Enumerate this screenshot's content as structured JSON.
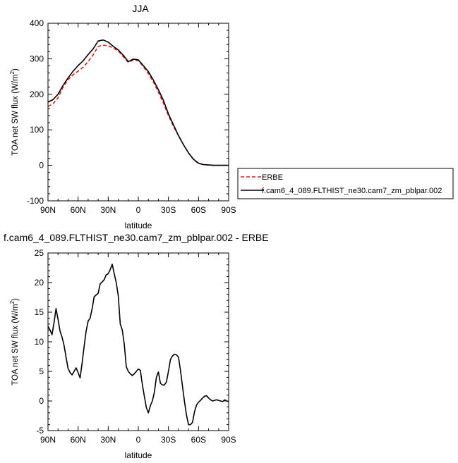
{
  "chart_data": [
    {
      "type": "line",
      "title": "JJA",
      "xlabel": "latitude",
      "ylabel": "TOA net SW flux (W/m²)",
      "ylabel_main": "TOA net SW flux (W/m",
      "ylabel_sup": "2",
      "ylabel_close": ")",
      "x_ticks": [
        "90N",
        "60N",
        "30N",
        "0",
        "30S",
        "60S",
        "90S"
      ],
      "y_ticks": [
        "-100",
        "0",
        "100",
        "200",
        "300",
        "400"
      ],
      "xlim": [
        90,
        -90
      ],
      "ylim": [
        -100,
        400
      ],
      "legend_position": "right",
      "x": [
        90,
        85,
        80,
        75,
        70,
        65,
        60,
        55,
        50,
        45,
        40,
        35,
        30,
        25,
        20,
        15,
        10,
        5,
        0,
        -5,
        -10,
        -15,
        -20,
        -25,
        -30,
        -35,
        -40,
        -45,
        -50,
        -55,
        -60,
        -65,
        -70,
        -75,
        -80,
        -85,
        -90
      ],
      "series": [
        {
          "name": "ERBE",
          "color": "#e41a1c",
          "dash": "dashed",
          "values": [
            166,
            173,
            190,
            220,
            241,
            255,
            265,
            276,
            292,
            311,
            335,
            338,
            337,
            330,
            322,
            306,
            290,
            296,
            295,
            278,
            258,
            235,
            206,
            175,
            140,
            110,
            83,
            58,
            35,
            16,
            5,
            2,
            1,
            0,
            0,
            0,
            0
          ]
        },
        {
          "name": "f.cam6_4_089.FLTHIST_ne30.cam7_zm_pblpar.002",
          "color": "#000000",
          "dash": "solid",
          "values": [
            178,
            185,
            200,
            225,
            246,
            265,
            281,
            294,
            312,
            328,
            350,
            353,
            347,
            335,
            325,
            310,
            292,
            299,
            297,
            281,
            264,
            240,
            213,
            183,
            145,
            114,
            84,
            58,
            35,
            17,
            6,
            2,
            1,
            0,
            0,
            0,
            0
          ]
        }
      ]
    },
    {
      "type": "line",
      "title": "f.cam6_4_089.FLTHIST_ne30.cam7_zm_pblpar.002 - ERBE",
      "xlabel": "latitude",
      "ylabel": "TOA net SW flux (W/m²)",
      "ylabel_main": "TOA net SW flux (W/m",
      "ylabel_sup": "2",
      "ylabel_close": ")",
      "x_ticks": [
        "90N",
        "60N",
        "30N",
        "0",
        "30S",
        "60S",
        "90S"
      ],
      "y_ticks": [
        "-5",
        "0",
        "5",
        "10",
        "15",
        "20",
        "25"
      ],
      "xlim": [
        90,
        -90
      ],
      "ylim": [
        -5,
        25
      ],
      "series": [
        {
          "color": "#000000",
          "dash": "solid",
          "x": [
            90,
            88,
            86,
            84,
            82,
            80,
            78,
            76,
            74,
            72,
            70,
            68,
            66,
            64,
            62,
            60,
            58,
            56,
            54,
            52,
            50,
            48,
            46,
            44,
            42,
            40,
            38,
            36,
            34,
            32,
            30,
            28,
            26,
            24,
            22,
            20,
            18,
            16,
            14,
            12,
            10,
            8,
            6,
            4,
            2,
            0,
            -2,
            -4,
            -6,
            -8,
            -10,
            -12,
            -14,
            -16,
            -18,
            -20,
            -22,
            -24,
            -26,
            -28,
            -30,
            -32,
            -34,
            -36,
            -38,
            -40,
            -42,
            -44,
            -46,
            -48,
            -50,
            -52,
            -54,
            -56,
            -58,
            -60,
            -62,
            -64,
            -66,
            -68,
            -70,
            -72,
            -74,
            -76,
            -78,
            -80,
            -82,
            -84,
            -86,
            -88,
            -90
          ],
          "values": [
            12.6,
            12,
            11.2,
            13.2,
            15.6,
            13.8,
            11.8,
            10.8,
            9.4,
            7.4,
            5.5,
            4.8,
            4.4,
            5,
            5.6,
            4.8,
            3.9,
            6.4,
            9.2,
            11.8,
            13.5,
            14,
            15.6,
            17.6,
            17.9,
            18.2,
            19.8,
            20.1,
            20.5,
            21.3,
            21.5,
            22.2,
            23.1,
            21.5,
            20,
            17.8,
            13,
            12,
            9.6,
            5.8,
            5,
            4.6,
            4.3,
            4.6,
            5,
            5.4,
            5.2,
            2.8,
            0.8,
            -1.1,
            -2,
            -0.8,
            0,
            1.5,
            4,
            4.9,
            3,
            2.7,
            2.7,
            3.2,
            5,
            7,
            7.6,
            7.9,
            7.8,
            7.4,
            5.2,
            2.5,
            -0.1,
            -2.4,
            -4,
            -4,
            -3.6,
            -1.8,
            -0.7,
            -0.2,
            0.1,
            0.5,
            0.8,
            0.9,
            0.5,
            0.2,
            0,
            0.1,
            0.2,
            0.1,
            0,
            -0.1,
            0.2,
            0,
            -0.1
          ]
        }
      ]
    }
  ]
}
